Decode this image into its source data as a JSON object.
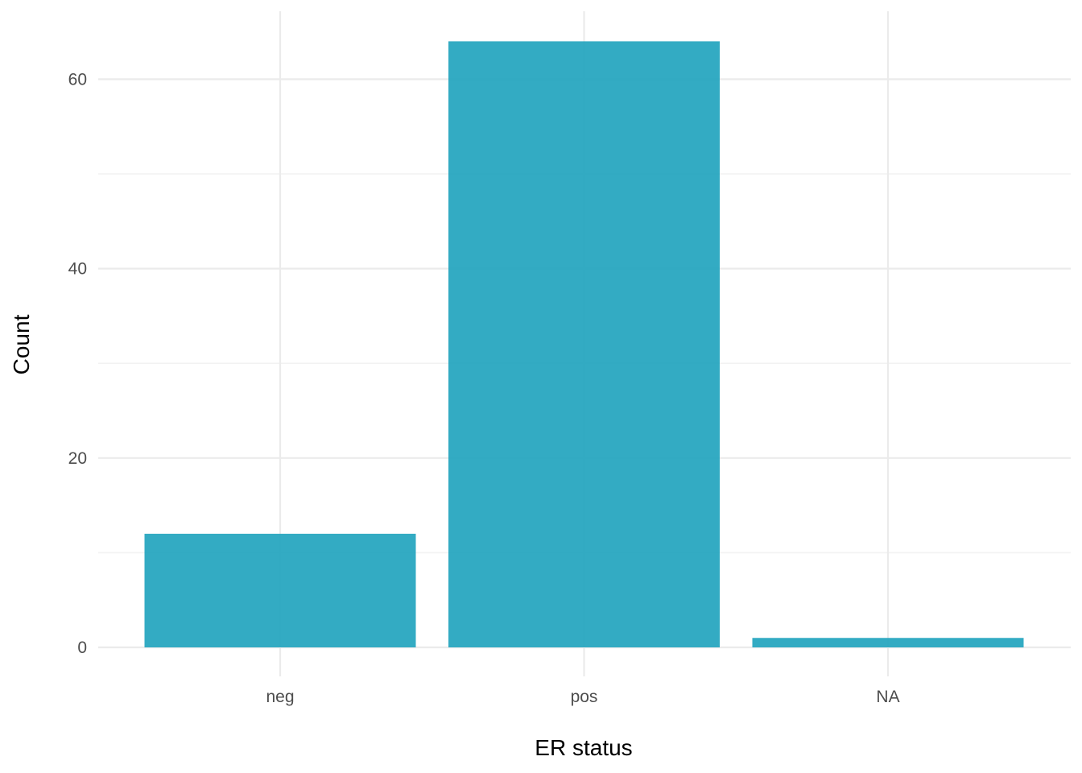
{
  "chart_data": {
    "type": "bar",
    "categories": [
      "neg",
      "pos",
      "NA"
    ],
    "values": [
      12,
      64,
      1
    ],
    "xlabel": "ER status",
    "ylabel": "Count",
    "ylim": [
      0,
      67
    ],
    "yticks": [
      0,
      20,
      40,
      60
    ],
    "yticks_labels": [
      "0",
      "20",
      "40",
      "60"
    ],
    "y_minor_ticks": [
      10,
      30,
      50
    ],
    "grid": true,
    "bar_color": "#22A4BE",
    "bar_opacity": 0.92
  }
}
